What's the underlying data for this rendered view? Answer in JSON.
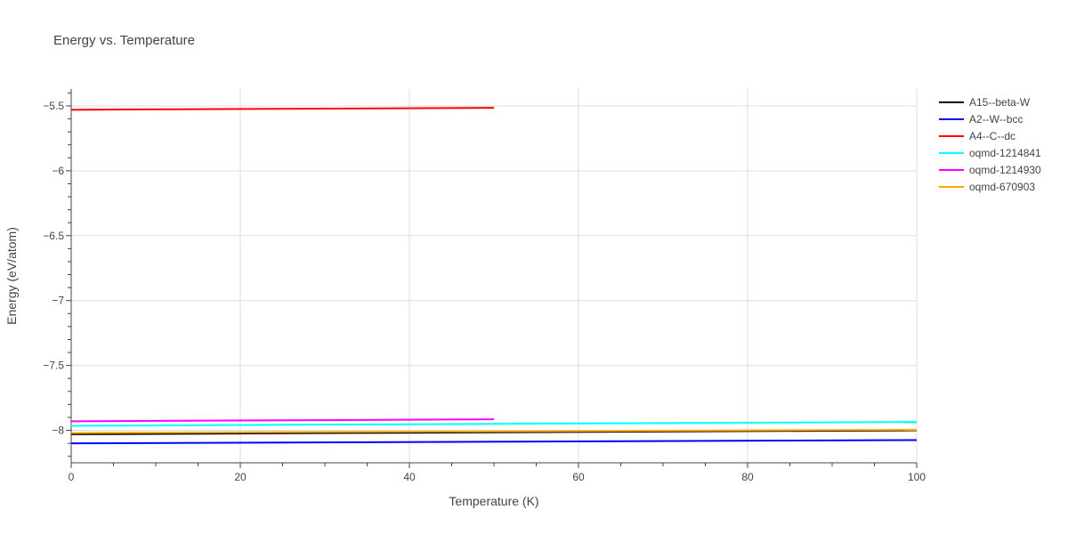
{
  "chart_data": {
    "type": "line",
    "title": "Energy vs. Temperature",
    "xlabel": "Temperature (K)",
    "ylabel": "Energy (eV/atom)",
    "xlim": [
      0,
      100
    ],
    "ylim": [
      -8.25,
      -5.37
    ],
    "xticks": [
      0,
      20,
      40,
      60,
      80,
      100
    ],
    "yticks": [
      -5.5,
      -6,
      -6.5,
      -7,
      -7.5,
      -8
    ],
    "ytick_labels": [
      "−5.5",
      "−6",
      "−6.5",
      "−7",
      "−7.5",
      "−8"
    ],
    "grid": true,
    "legend_position": "top-right",
    "series": [
      {
        "name": "A15--beta-W",
        "color": "#000000",
        "x": [
          0,
          100
        ],
        "y": [
          -8.03,
          -8.0
        ]
      },
      {
        "name": "A2--W--bcc",
        "color": "#0000ff",
        "x": [
          0,
          100
        ],
        "y": [
          -8.1,
          -8.075
        ]
      },
      {
        "name": "A4--C--dc",
        "color": "#ff0000",
        "x": [
          0,
          50
        ],
        "y": [
          -5.53,
          -5.515
        ]
      },
      {
        "name": "oqmd-1214841",
        "color": "#00ffff",
        "x": [
          0,
          100
        ],
        "y": [
          -7.965,
          -7.935
        ]
      },
      {
        "name": "oqmd-1214930",
        "color": "#ff00ff",
        "x": [
          0,
          50
        ],
        "y": [
          -7.93,
          -7.915
        ]
      },
      {
        "name": "oqmd-670903",
        "color": "#ffa500",
        "x": [
          0,
          100
        ],
        "y": [
          -8.02,
          -7.995
        ]
      }
    ]
  }
}
